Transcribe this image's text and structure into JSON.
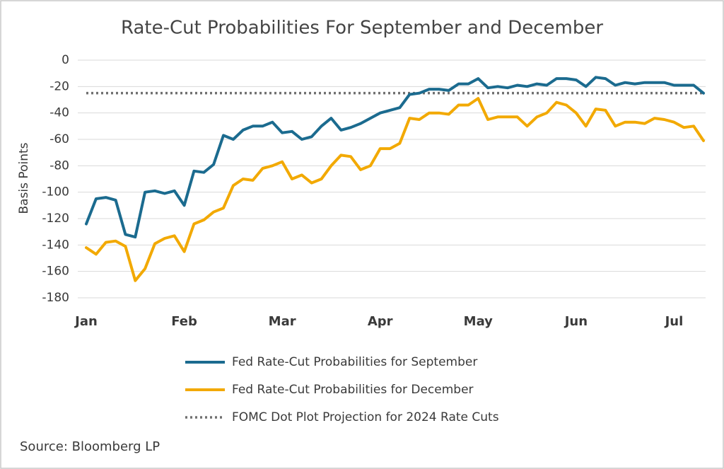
{
  "chart_data": {
    "type": "line",
    "title": "Rate-Cut Probabilities For September and December",
    "y_label": "Basis Points",
    "source": "Source: Bloomberg LP",
    "categories": [
      "Jan",
      null,
      null,
      null,
      null,
      null,
      null,
      null,
      null,
      null,
      "Feb",
      null,
      null,
      null,
      null,
      null,
      null,
      null,
      null,
      null,
      "Mar",
      null,
      null,
      null,
      null,
      null,
      null,
      null,
      null,
      null,
      "Apr",
      null,
      null,
      null,
      null,
      null,
      null,
      null,
      null,
      null,
      "May",
      null,
      null,
      null,
      null,
      null,
      null,
      null,
      null,
      null,
      "Jun",
      null,
      null,
      null,
      null,
      null,
      null,
      null,
      null,
      null,
      "Jul",
      null,
      null,
      null
    ],
    "series": [
      {
        "name": "Fed Rate-Cut Probabilities for September",
        "color": "#1b6b8f",
        "values": [
          -124,
          -105,
          -104,
          -106,
          -132,
          -134,
          -100,
          -99,
          -101,
          -99,
          -110,
          -84,
          -85,
          -79,
          -57,
          -60,
          -53,
          -50,
          -50,
          -47,
          -55,
          -54,
          -60,
          -58,
          -50,
          -44,
          -53,
          -51,
          -48,
          -44,
          -40,
          -38,
          -36,
          -26,
          -25,
          -22,
          -22,
          -23,
          -18,
          -18,
          -14,
          -21,
          -20,
          -21,
          -19,
          -20,
          -18,
          -19,
          -14,
          -14,
          -15,
          -20,
          -13,
          -14,
          -19,
          -17,
          -18,
          -17,
          -17,
          -17,
          -19,
          -19,
          -19,
          -25
        ]
      },
      {
        "name": "Fed Rate-Cut Probabilities for December",
        "color": "#f2a900",
        "values": [
          -142,
          -147,
          -138,
          -137,
          -141,
          -167,
          -158,
          -139,
          -135,
          -133,
          -145,
          -124,
          -121,
          -115,
          -112,
          -95,
          -90,
          -91,
          -82,
          -80,
          -77,
          -90,
          -87,
          -93,
          -90,
          -80,
          -72,
          -73,
          -83,
          -80,
          -67,
          -67,
          -63,
          -44,
          -45,
          -40,
          -40,
          -41,
          -34,
          -34,
          -29,
          -45,
          -43,
          -43,
          -43,
          -50,
          -43,
          -40,
          -32,
          -34,
          -40,
          -50,
          -37,
          -38,
          -50,
          -47,
          -47,
          -48,
          -44,
          -45,
          -47,
          -51,
          -50,
          -61
        ]
      }
    ],
    "hlines": [
      {
        "name": "FOMC Dot Plot Projection for 2024 Rate Cuts",
        "value": -25,
        "color": "#707070",
        "style": "dotted"
      }
    ],
    "ylim": [
      -180,
      0
    ],
    "yticks": [
      -180,
      -160,
      -140,
      -120,
      -100,
      -80,
      -60,
      -40,
      -20,
      0
    ],
    "grid": true
  }
}
